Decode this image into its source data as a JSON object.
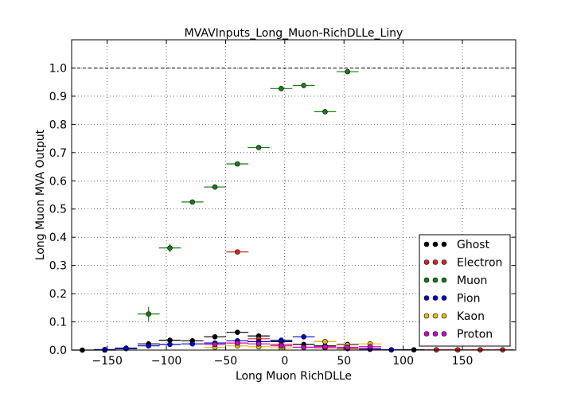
{
  "chart_data": {
    "type": "scatter",
    "title": "MVAVInputs_Long_Muon-RichDLLe_Liny",
    "xlabel": "Long Muon RichDLLe",
    "ylabel": "Long Muon MVA Output",
    "xlim": [
      -180,
      195
    ],
    "ylim": [
      0,
      1.1
    ],
    "x_ticks": [
      -150,
      -100,
      -50,
      0,
      50,
      100,
      150
    ],
    "x_tick_labels": [
      "−150",
      "−100",
      "−50",
      "0",
      "50",
      "100",
      "150"
    ],
    "y_ticks": [
      0.0,
      0.1,
      0.2,
      0.3,
      0.4,
      0.5,
      0.6,
      0.7,
      0.8,
      0.9,
      1.0
    ],
    "y_tick_labels": [
      "0.0",
      "0.1",
      "0.2",
      "0.3",
      "0.4",
      "0.5",
      "0.6",
      "0.7",
      "0.8",
      "0.9",
      "1.0"
    ],
    "grid": true,
    "reference_line_y": 1.0,
    "legend_position": "lower-right",
    "series": [
      {
        "name": "Ghost",
        "color": "#000000",
        "points": [
          [
            -171,
            0
          ],
          [
            -152,
            0
          ],
          [
            -134,
            0.005
          ],
          [
            -115,
            0.022
          ],
          [
            -97,
            0.035
          ],
          [
            -78,
            0.033
          ],
          [
            -59,
            0.047
          ],
          [
            -40,
            0.063
          ],
          [
            -22,
            0.05
          ],
          [
            -3,
            0.03
          ],
          [
            16,
            0.02
          ],
          [
            34,
            0.015
          ],
          [
            53,
            0.005
          ],
          [
            72,
            0.003
          ],
          [
            90,
            0.001
          ],
          [
            109,
            0.001
          ]
        ]
      },
      {
        "name": "Electron",
        "color": "#d62728",
        "points": [
          [
            -40,
            0.348
          ],
          [
            -22,
            0.04
          ],
          [
            -3,
            0.02
          ],
          [
            16,
            0.01
          ],
          [
            34,
            0.008
          ],
          [
            53,
            0.005
          ],
          [
            72,
            0.003
          ],
          [
            128,
            0.001
          ],
          [
            146,
            0.001
          ],
          [
            165,
            0.001
          ],
          [
            184,
            0.001
          ]
        ]
      },
      {
        "name": "Muon",
        "color": "#1a7a1a",
        "points": [
          [
            -115,
            0.128
          ],
          [
            -97,
            0.362
          ],
          [
            -78,
            0.525
          ],
          [
            -59,
            0.578
          ],
          [
            -40,
            0.66
          ],
          [
            -22,
            0.718
          ],
          [
            -3,
            0.927
          ],
          [
            16,
            0.938
          ],
          [
            34,
            0.845
          ],
          [
            53,
            0.987
          ]
        ],
        "y_err": [
          0.025,
          0.015,
          0.008,
          0.006,
          0.005,
          0.005,
          0.004,
          0.004,
          0.004,
          0.003
        ]
      },
      {
        "name": "Pion",
        "color": "#0000cc",
        "points": [
          [
            -152,
            0.002
          ],
          [
            -134,
            0.007
          ],
          [
            -115,
            0.015
          ],
          [
            -97,
            0.02
          ],
          [
            -78,
            0.022
          ],
          [
            -59,
            0.025
          ],
          [
            -40,
            0.033
          ],
          [
            -22,
            0.03
          ],
          [
            -3,
            0.035
          ],
          [
            16,
            0.047
          ],
          [
            34,
            0.03
          ],
          [
            53,
            0.02
          ],
          [
            72,
            0.005
          ],
          [
            90,
            0.001
          ]
        ]
      },
      {
        "name": "Kaon",
        "color": "#e6c000",
        "points": [
          [
            -59,
            0.01
          ],
          [
            -40,
            0.015
          ],
          [
            -22,
            0.012
          ],
          [
            -3,
            0.008
          ],
          [
            16,
            0.01
          ],
          [
            34,
            0.03
          ],
          [
            53,
            0.018
          ],
          [
            72,
            0.022
          ]
        ]
      },
      {
        "name": "Proton",
        "color": "#cc00cc",
        "points": [
          [
            -59,
            0.02
          ],
          [
            -40,
            0.025
          ],
          [
            -22,
            0.022
          ],
          [
            -3,
            0.015
          ],
          [
            16,
            0.01
          ],
          [
            34,
            0.012
          ],
          [
            53,
            0.01
          ],
          [
            72,
            0.012
          ]
        ]
      }
    ]
  }
}
